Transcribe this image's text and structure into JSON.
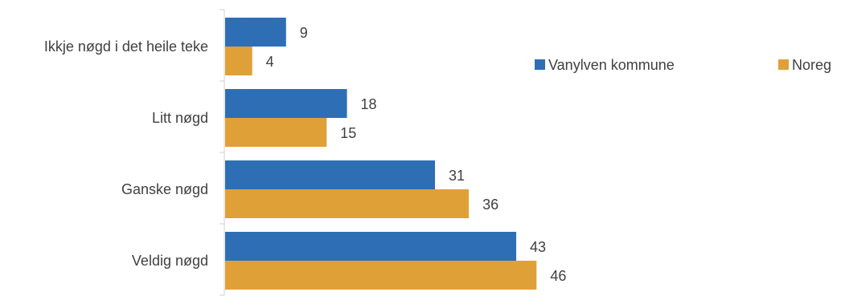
{
  "chart_data": {
    "type": "bar",
    "orientation": "horizontal",
    "categories": [
      "Ikkje nøgd i det heile teke",
      "Litt nøgd",
      "Ganske nøgd",
      "Veldig nøgd"
    ],
    "series": [
      {
        "name": "Vanylven kommune",
        "values": [
          9,
          18,
          31,
          43
        ],
        "color": "#2e6eb5"
      },
      {
        "name": "Noreg",
        "values": [
          4,
          15,
          36,
          46
        ],
        "color": "#e0a038"
      }
    ],
    "xlim": [
      0,
      50
    ],
    "grid": false,
    "legend_placement": "right"
  }
}
